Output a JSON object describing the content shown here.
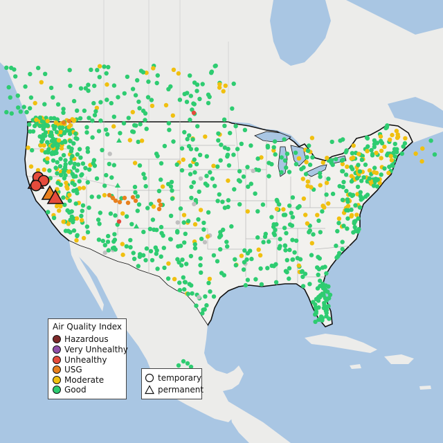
{
  "colors": {
    "ocean": "#a9c6e3",
    "land": "#f0efec",
    "foreign_land": "#e9e8e4",
    "border": "#111111",
    "state_line": "#b5b5b5"
  },
  "legend": {
    "title": "Air Quality Index",
    "categories": [
      {
        "label": "Hazardous",
        "color": "#7e2a2a"
      },
      {
        "label": "Very Unhealthy",
        "color": "#8f4fa8"
      },
      {
        "label": "Unhealthy",
        "color": "#e54b3c"
      },
      {
        "label": "USG",
        "color": "#e8801e"
      },
      {
        "label": "Moderate",
        "color": "#f0c010"
      },
      {
        "label": "Good",
        "color": "#2ecc71"
      }
    ],
    "site_types": [
      {
        "label": "temporary",
        "icon": "circle-icon"
      },
      {
        "label": "permanent",
        "icon": "triangle-icon"
      }
    ]
  },
  "no_data_color": "#c0c0c0"
}
